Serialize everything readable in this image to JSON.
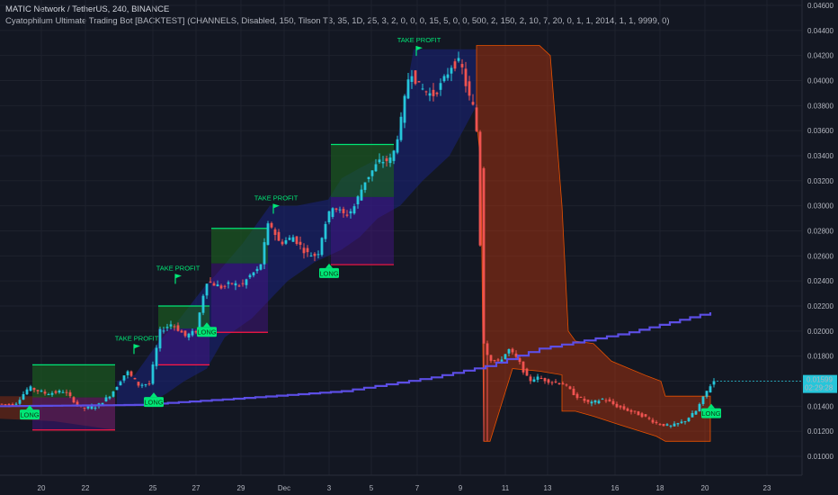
{
  "header": {
    "symbol_line": "MATIC Network / TetherUS, 240, BINANCE",
    "indicator_line": "Cyatophilum Ultimate Trading Bot [BACKTEST] (CHANNELS, Disabled, 150, Tilson T3, 35, 1D, 25, 3, 2, 0, 0, 0, 15, 5, 0, 0, 500, 2, 150, 2, 10, 7, 20, 0, 1, 1, 2014, 1, 1, 9999, 0)"
  },
  "colors": {
    "background": "#131722",
    "grid": "#1e222d",
    "up": "#26c6da",
    "down": "#ef5350",
    "channel_up": "#1a237e",
    "channel_down": "#bf360c",
    "take_profit_zone": "#1b5e20",
    "stop_zone": "#4a148c",
    "signal_green": "#00e676",
    "stop_line": "#ff1744",
    "ma_line": "#5c4ee5",
    "price_tag": "#26c6da"
  },
  "chart_data": {
    "type": "candlestick",
    "x_ticks": [
      "20",
      "22",
      "25",
      "27",
      "29",
      "Dec",
      "3",
      "5",
      "7",
      "9",
      "11",
      "13",
      "16",
      "18",
      "20",
      "23"
    ],
    "y_ticks": [
      "0.04600",
      "0.04400",
      "0.04200",
      "0.04000",
      "0.03800",
      "0.03600",
      "0.03400",
      "0.03200",
      "0.03000",
      "0.02800",
      "0.02600",
      "0.02400",
      "0.02200",
      "0.02000",
      "0.01800",
      "0.01600",
      "0.01400",
      "0.01200",
      "0.01000"
    ],
    "ylim": [
      0.0092,
      0.0467
    ],
    "last_price": "0.01599",
    "countdown": "02:29:28",
    "price_path": [
      [
        0,
        0.0142
      ],
      [
        20,
        0.0141
      ],
      [
        36,
        0.0155
      ],
      [
        55,
        0.015
      ],
      [
        75,
        0.0152
      ],
      [
        95,
        0.0138
      ],
      [
        112,
        0.014
      ],
      [
        128,
        0.015
      ],
      [
        145,
        0.0168
      ],
      [
        158,
        0.0157
      ],
      [
        170,
        0.0158
      ],
      [
        182,
        0.02
      ],
      [
        195,
        0.0206
      ],
      [
        210,
        0.0196
      ],
      [
        222,
        0.02
      ],
      [
        233,
        0.024
      ],
      [
        250,
        0.0235
      ],
      [
        262,
        0.0238
      ],
      [
        272,
        0.0236
      ],
      [
        283,
        0.0245
      ],
      [
        293,
        0.025
      ],
      [
        303,
        0.0288
      ],
      [
        315,
        0.027
      ],
      [
        330,
        0.0275
      ],
      [
        345,
        0.0262
      ],
      [
        357,
        0.026
      ],
      [
        365,
        0.0285
      ],
      [
        374,
        0.03
      ],
      [
        388,
        0.0292
      ],
      [
        397,
        0.0298
      ],
      [
        410,
        0.032
      ],
      [
        425,
        0.0335
      ],
      [
        440,
        0.0337
      ],
      [
        450,
        0.0368
      ],
      [
        460,
        0.041
      ],
      [
        470,
        0.0395
      ],
      [
        485,
        0.0388
      ],
      [
        496,
        0.0398
      ],
      [
        506,
        0.0412
      ],
      [
        516,
        0.0415
      ],
      [
        525,
        0.0388
      ],
      [
        532,
        0.0375
      ],
      [
        536,
        0.0345
      ],
      [
        540,
        0.0195
      ],
      [
        548,
        0.0178
      ],
      [
        558,
        0.0175
      ],
      [
        570,
        0.0185
      ],
      [
        580,
        0.0177
      ],
      [
        592,
        0.016
      ],
      [
        600,
        0.0163
      ],
      [
        615,
        0.016
      ],
      [
        630,
        0.0158
      ],
      [
        645,
        0.0148
      ],
      [
        660,
        0.0142
      ],
      [
        675,
        0.0146
      ],
      [
        690,
        0.014
      ],
      [
        705,
        0.0136
      ],
      [
        720,
        0.0132
      ],
      [
        735,
        0.0126
      ],
      [
        750,
        0.0124
      ],
      [
        765,
        0.0128
      ],
      [
        778,
        0.0136
      ],
      [
        790,
        0.0152
      ],
      [
        797,
        0.016
      ]
    ],
    "ma_line": [
      [
        0,
        0.014
      ],
      [
        150,
        0.0141
      ],
      [
        260,
        0.0146
      ],
      [
        380,
        0.0152
      ],
      [
        480,
        0.0163
      ],
      [
        540,
        0.0172
      ],
      [
        600,
        0.0186
      ],
      [
        700,
        0.0199
      ],
      [
        790,
        0.0215
      ]
    ],
    "trades": [
      {
        "type": "long",
        "x0": 36,
        "x1": 128,
        "entry": 0.0147,
        "tp": 0.0173,
        "sl": 0.0121
      },
      {
        "type": "long",
        "x0": 176,
        "x1": 233,
        "entry": 0.0202,
        "tp": 0.022,
        "sl": 0.0173
      },
      {
        "type": "long",
        "x0": 235,
        "x1": 298,
        "entry": 0.0254,
        "tp": 0.0282,
        "sl": 0.0199
      },
      {
        "type": "long",
        "x0": 368,
        "x1": 438,
        "entry": 0.0307,
        "tp": 0.0349,
        "sl": 0.0253
      }
    ],
    "signals": [
      {
        "label": "LONG",
        "x": 33,
        "price": 0.0133
      },
      {
        "label": "LONG",
        "x": 171,
        "price": 0.0143
      },
      {
        "label": "LONG",
        "x": 230,
        "price": 0.0199
      },
      {
        "label": "LONG",
        "x": 366,
        "price": 0.0246
      },
      {
        "label": "LONG",
        "x": 791,
        "price": 0.0134
      }
    ],
    "take_profits": [
      {
        "label": "TAKE PROFIT",
        "x": 152,
        "price": 0.0186
      },
      {
        "label": "TAKE PROFIT",
        "x": 198,
        "price": 0.0242
      },
      {
        "label": "TAKE PROFIT",
        "x": 307,
        "price": 0.0298
      },
      {
        "label": "TAKE PROFIT",
        "x": 466,
        "price": 0.0424
      }
    ]
  }
}
